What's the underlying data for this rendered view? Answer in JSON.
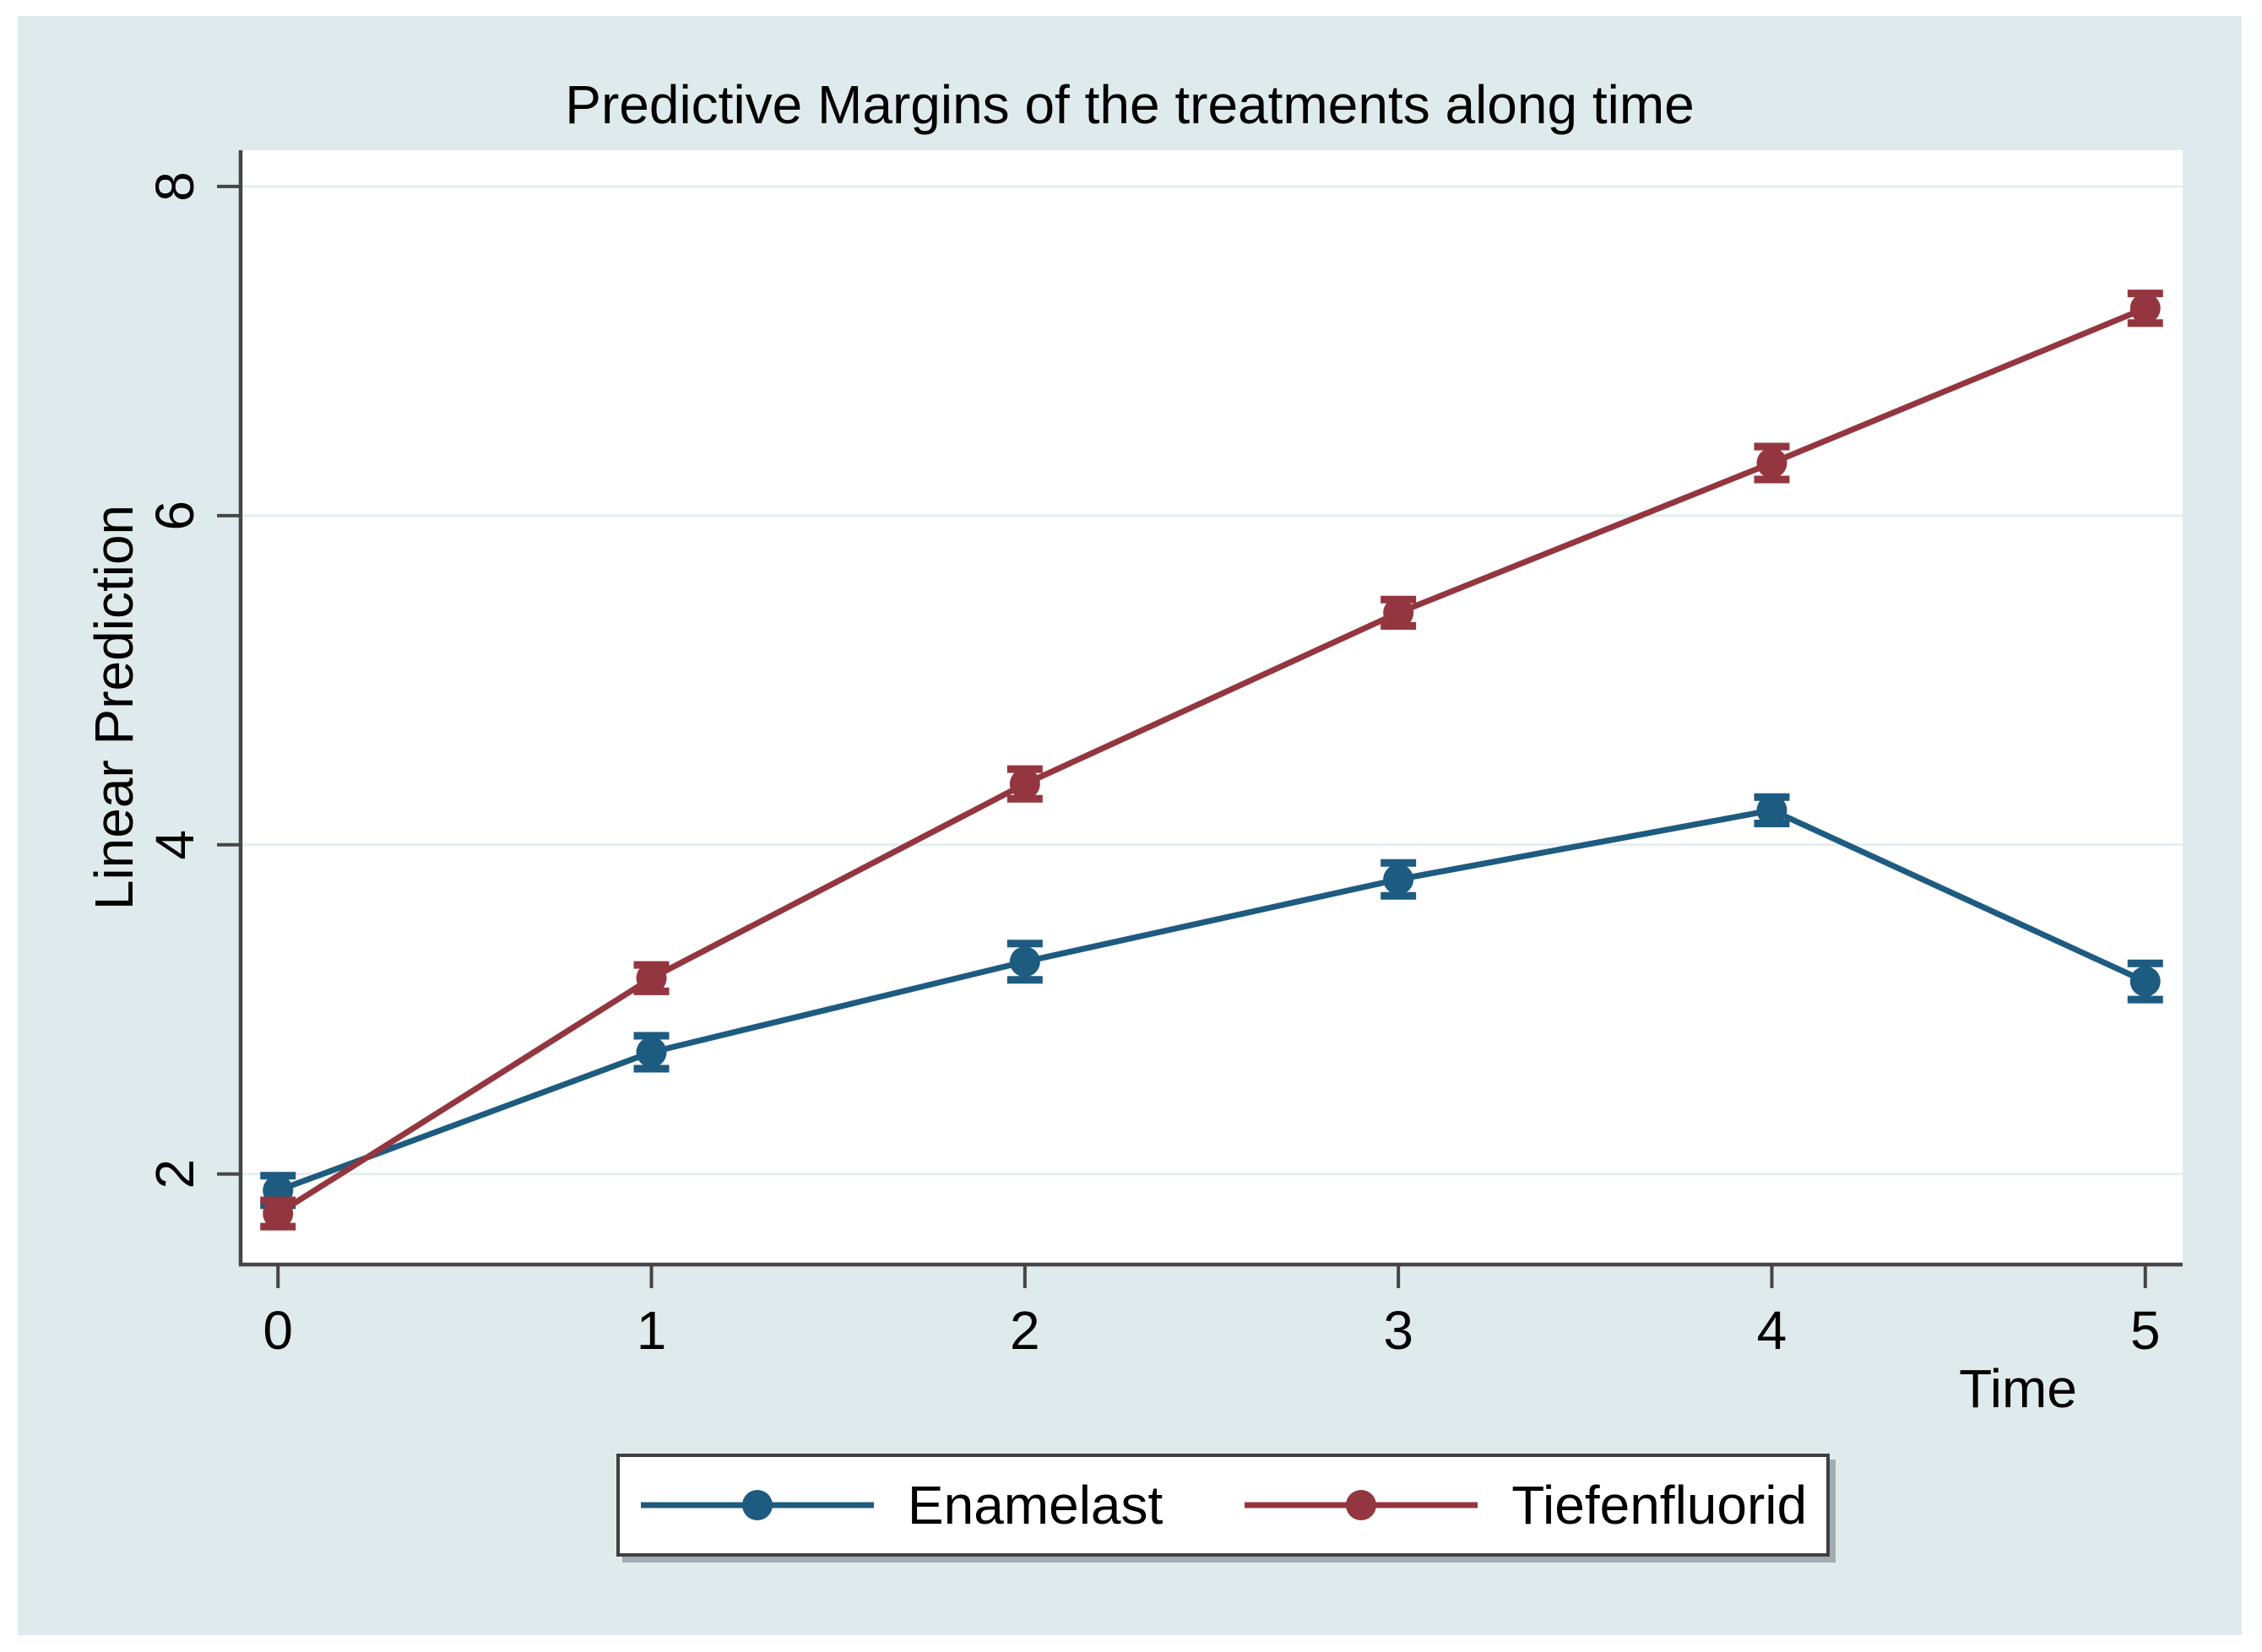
{
  "figure": {
    "title": "Predictive Margins of the treatments along time"
  },
  "chart_data": {
    "type": "line",
    "title": "Predictive Margins of the treatments along time",
    "xlabel": "Time",
    "ylabel": "Linear Prediction",
    "x": [
      0,
      1,
      2,
      3,
      4,
      5
    ],
    "xtick_labels": [
      "0",
      "1",
      "2",
      "3",
      "4",
      "5"
    ],
    "yticks": [
      2,
      4,
      6,
      8
    ],
    "ytick_labels": [
      "2",
      "4",
      "6",
      "8"
    ],
    "xlim": [
      -0.1,
      5.1
    ],
    "ylim": [
      1.45,
      8.22
    ],
    "grid": "horizontal-only",
    "error_bars": true,
    "legend_position": "bottom-center",
    "series": [
      {
        "name": "Enamelast",
        "color": "#1e5b80",
        "values": [
          1.9,
          2.74,
          3.29,
          3.79,
          4.21,
          3.17
        ],
        "ci": [
          0.09,
          0.1,
          0.11,
          0.1,
          0.08,
          0.11
        ]
      },
      {
        "name": "Tiefenfluorid",
        "color": "#94363f",
        "values": [
          1.76,
          3.19,
          4.37,
          5.41,
          6.32,
          7.26
        ],
        "ci": [
          0.08,
          0.08,
          0.09,
          0.08,
          0.1,
          0.09
        ]
      }
    ],
    "colors": {
      "outer_background": "#ffffff",
      "panel_background": "#dfeaec",
      "plot_background": "#ffffff",
      "grid": "#e4eef1",
      "axis": "#454545",
      "text": "#000000",
      "legend_border": "#3f3f3f",
      "legend_background": "#ffffff"
    }
  }
}
